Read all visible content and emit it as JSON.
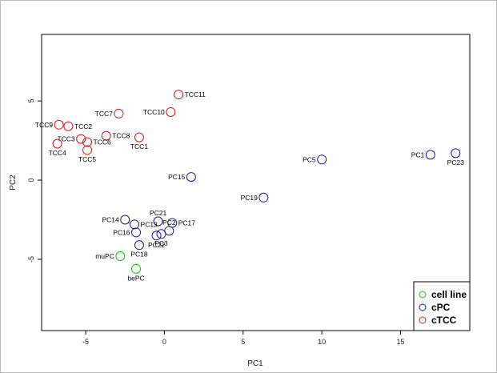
{
  "chart_data": {
    "type": "scatter",
    "title": "",
    "xlabel": "PC1",
    "ylabel": "PC2",
    "xlim": [
      -7.8,
      19.4
    ],
    "ylim": [
      -9.5,
      9.2
    ],
    "xticks": [
      -5,
      0,
      5,
      10,
      15
    ],
    "yticks": [
      -5,
      0,
      5
    ],
    "grid": false,
    "legend_position": "bottom-right",
    "series": [
      {
        "name": "cell line",
        "color": "#00cc00",
        "points": [
          {
            "label": "muPC",
            "x": -2.8,
            "y": -4.8
          },
          {
            "label": "bePC",
            "x": -1.8,
            "y": -5.6
          }
        ]
      },
      {
        "name": "cPC",
        "color": "#1a1aa0",
        "points": [
          {
            "label": "PC1",
            "x": 16.9,
            "y": 1.6
          },
          {
            "label": "PC23",
            "x": 18.5,
            "y": 1.7
          },
          {
            "label": "PC5",
            "x": 10.0,
            "y": 1.3
          },
          {
            "label": "PC15",
            "x": 1.7,
            "y": 0.2
          },
          {
            "label": "PC19",
            "x": 6.3,
            "y": -1.1
          },
          {
            "label": "PC14",
            "x": -2.5,
            "y": -2.5
          },
          {
            "label": "PC21",
            "x": -0.4,
            "y": -2.6
          },
          {
            "label": "PC17",
            "x": 0.5,
            "y": -2.7
          },
          {
            "label": "PC13",
            "x": -1.9,
            "y": -2.8
          },
          {
            "label": "PC2",
            "x": 0.3,
            "y": -3.2
          },
          {
            "label": "PC16",
            "x": -1.8,
            "y": -3.3
          },
          {
            "label": "PC22",
            "x": -0.5,
            "y": -3.5
          },
          {
            "label": "PC3",
            "x": -0.2,
            "y": -3.4
          },
          {
            "label": "PC18",
            "x": -1.6,
            "y": -4.1
          }
        ]
      },
      {
        "name": "cTCC",
        "color": "#cc1a1a",
        "points": [
          {
            "label": "TCC11",
            "x": 0.9,
            "y": 5.4
          },
          {
            "label": "TCC10",
            "x": 0.4,
            "y": 4.3
          },
          {
            "label": "TCC7",
            "x": -2.9,
            "y": 4.2
          },
          {
            "label": "TCC8",
            "x": -3.7,
            "y": 2.8
          },
          {
            "label": "TCC9",
            "x": -6.7,
            "y": 3.5
          },
          {
            "label": "TCC2",
            "x": -6.1,
            "y": 3.4
          },
          {
            "label": "TCC3",
            "x": -5.3,
            "y": 2.6
          },
          {
            "label": "TCC6",
            "x": -4.9,
            "y": 2.4
          },
          {
            "label": "TCC1",
            "x": -1.6,
            "y": 2.7
          },
          {
            "label": "TCC4",
            "x": -6.8,
            "y": 2.3
          },
          {
            "label": "TCC5",
            "x": -4.9,
            "y": 1.9
          }
        ]
      }
    ]
  }
}
